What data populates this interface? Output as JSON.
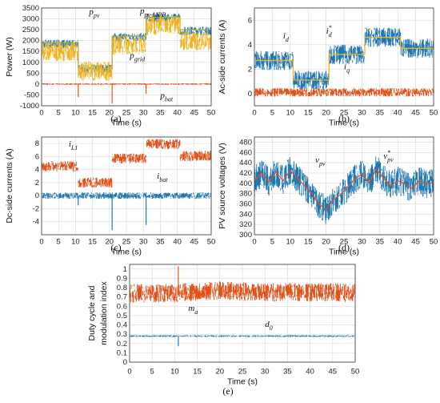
{
  "colors": {
    "blue": "#1f77b4",
    "orange": "#e2531c",
    "yellow": "#f0b323",
    "olive": "#a8a93a"
  },
  "chart_data": [
    {
      "id": "a",
      "type": "line",
      "panel_label": "(a)",
      "xlabel": "Time (s)",
      "ylabel": "Power (W)",
      "xlim": [
        0,
        50
      ],
      "ylim": [
        -1000,
        3500
      ],
      "xticks": [
        0,
        5,
        10,
        15,
        20,
        25,
        30,
        35,
        40,
        45,
        50
      ],
      "yticks": [
        -1000,
        -500,
        0,
        500,
        1000,
        1500,
        2000,
        2500,
        3000,
        3500
      ],
      "grid": true,
      "series": [
        {
          "name": "p_pv",
          "color": "#1f77b4",
          "x": [
            0,
            10.8,
            10.8,
            20.8,
            20.8,
            30.8,
            30.8,
            40.8,
            40.8,
            50
          ],
          "y": [
            1850,
            1850,
            700,
            700,
            2150,
            2150,
            3050,
            3050,
            2450,
            2450
          ],
          "band": 200
        },
        {
          "name": "p_pv-MPP",
          "color": "#a8a93a",
          "x": [
            0,
            10.8,
            10.8,
            20.8,
            20.8,
            30.8,
            30.8,
            40.8,
            40.8,
            50
          ],
          "y": [
            1900,
            1900,
            720,
            720,
            2200,
            2200,
            3080,
            3080,
            2500,
            2500
          ],
          "band": 0
        },
        {
          "name": "p_grid",
          "color": "#f0b323",
          "x": [
            0,
            10.8,
            10.8,
            20.8,
            20.8,
            30.8,
            30.8,
            40.8,
            40.8,
            50
          ],
          "y": [
            1500,
            1500,
            600,
            600,
            1800,
            1800,
            2700,
            2700,
            2000,
            2000
          ],
          "band": 450
        },
        {
          "name": "p_bat",
          "color": "#e2531c",
          "x": [
            0,
            10.8,
            20.8,
            30.8,
            40.8,
            50
          ],
          "y": [
            0,
            0,
            0,
            0,
            0,
            0
          ],
          "band": 40,
          "spikes": [
            {
              "x": 10.8,
              "y": -600
            },
            {
              "x": 20.8,
              "y": -900
            },
            {
              "x": 30.8,
              "y": -450
            }
          ]
        }
      ],
      "annotations": [
        {
          "text": "p",
          "sub": "pv",
          "sx": 14,
          "sy": 3200
        },
        {
          "text": "p",
          "sub": "pv-MPP",
          "sx": 29,
          "sy": 3250
        },
        {
          "text": "p",
          "sub": "grid",
          "sx": 26,
          "sy": 1200
        },
        {
          "text": "p",
          "sub": "bat",
          "sx": 35,
          "sy": -650
        }
      ]
    },
    {
      "id": "b",
      "type": "line",
      "panel_label": "(b)",
      "xlabel": "Time (s)",
      "ylabel": "Ac-side currents (A)",
      "xlim": [
        0,
        50
      ],
      "ylim": [
        -1,
        7
      ],
      "xticks": [
        0,
        5,
        10,
        15,
        20,
        25,
        30,
        35,
        40,
        45,
        50
      ],
      "yticks": [
        0,
        2,
        4,
        6
      ],
      "grid": true,
      "series": [
        {
          "name": "i_d",
          "color": "#1f77b4",
          "x": [
            0,
            10.8,
            10.8,
            20.8,
            20.8,
            30.8,
            30.8,
            40.8,
            40.8,
            50
          ],
          "y": [
            2.7,
            2.7,
            1.1,
            1.1,
            3.2,
            3.2,
            4.6,
            4.6,
            3.7,
            3.7
          ],
          "band": 0.8
        },
        {
          "name": "i_d*",
          "color": "#f0b323",
          "x": [
            0,
            10.8,
            10.8,
            20.8,
            20.8,
            30.8,
            30.8,
            40.8,
            40.8,
            50
          ],
          "y": [
            2.7,
            2.7,
            1.1,
            1.1,
            3.2,
            3.2,
            4.6,
            4.6,
            3.7,
            3.7
          ],
          "band": 0
        },
        {
          "name": "i_q",
          "color": "#e2531c",
          "x": [
            0,
            50
          ],
          "y": [
            0.1,
            0.1
          ],
          "band": 0.35
        }
      ],
      "annotations": [
        {
          "text": "i",
          "sub": "d",
          "sx": 8,
          "sy": 4.5
        },
        {
          "text": "i",
          "sub": "d",
          "sup": "*",
          "sx": 20,
          "sy": 4.9
        },
        {
          "text": "i",
          "sub": "q",
          "sx": 25,
          "sy": 2.0
        }
      ]
    },
    {
      "id": "c",
      "type": "line",
      "panel_label": "(c)",
      "xlabel": "Time (s)",
      "ylabel": "Dc-side currents (A)",
      "xlim": [
        0,
        50
      ],
      "ylim": [
        -6,
        9
      ],
      "xticks": [
        0,
        5,
        10,
        15,
        20,
        25,
        30,
        35,
        40,
        45,
        50
      ],
      "yticks": [
        -4,
        -2,
        0,
        2,
        4,
        6,
        8
      ],
      "grid": true,
      "series": [
        {
          "name": "i_L1",
          "color": "#e2531c",
          "x": [
            0,
            10.8,
            10.8,
            20.8,
            20.8,
            30.8,
            30.8,
            40.8,
            40.8,
            50
          ],
          "y": [
            4.5,
            4.5,
            2.0,
            2.0,
            5.7,
            5.7,
            7.9,
            7.9,
            6.1,
            6.1
          ],
          "band": 0.8
        },
        {
          "name": "i_bat",
          "color": "#1f77b4",
          "x": [
            0,
            50
          ],
          "y": [
            0,
            0
          ],
          "band": 0.5,
          "spikes": [
            {
              "x": 10.8,
              "y": -1.5
            },
            {
              "x": 20.8,
              "y": -5.3
            },
            {
              "x": 30.8,
              "y": -4.5
            }
          ]
        }
      ],
      "annotations": [
        {
          "text": "i",
          "sub": "L1",
          "sx": 8,
          "sy": 7.5
        },
        {
          "text": "i",
          "sub": "bat",
          "sx": 34,
          "sy": 2.6
        }
      ]
    },
    {
      "id": "d",
      "type": "line",
      "panel_label": "(d)",
      "xlabel": "Time (s)",
      "ylabel": "PV source voltages (V)",
      "xlim": [
        0,
        50
      ],
      "ylim": [
        300,
        490
      ],
      "xticks": [
        0,
        5,
        10,
        15,
        20,
        25,
        30,
        35,
        40,
        45,
        50
      ],
      "yticks": [
        300,
        320,
        340,
        360,
        380,
        400,
        420,
        440,
        460,
        480
      ],
      "grid": true,
      "series": [
        {
          "name": "v_pv",
          "color": "#1f77b4",
          "x": [
            0,
            2,
            4,
            6,
            8,
            10,
            12,
            14,
            16,
            18,
            20,
            22,
            24,
            26,
            28,
            30,
            32,
            34,
            36,
            38,
            40,
            42,
            44,
            46,
            48,
            50
          ],
          "y": [
            405,
            420,
            402,
            422,
            405,
            425,
            410,
            395,
            380,
            360,
            348,
            368,
            378,
            392,
            408,
            418,
            400,
            428,
            410,
            395,
            405,
            398,
            390,
            405,
            398,
            402
          ],
          "band": 28
        },
        {
          "name": "v_pv*",
          "color": "#e2531c",
          "x": [
            0,
            2,
            4,
            6,
            8,
            10,
            12,
            14,
            16,
            18,
            20,
            22,
            24,
            26,
            28,
            30,
            32,
            34,
            36,
            38,
            40,
            42,
            44,
            46,
            48,
            50
          ],
          "y": [
            405,
            420,
            402,
            422,
            405,
            425,
            410,
            395,
            380,
            360,
            348,
            368,
            378,
            392,
            408,
            418,
            400,
            428,
            410,
            395,
            405,
            398,
            390,
            405,
            398,
            402
          ],
          "band": 0
        }
      ],
      "annotations": [
        {
          "text": "v",
          "sub": "pv",
          "sx": 17,
          "sy": 440
        },
        {
          "text": "v",
          "sub": "pv",
          "sup": "*",
          "sx": 36,
          "sy": 448
        }
      ]
    },
    {
      "id": "e",
      "type": "line",
      "panel_label": "(e)",
      "xlabel": "Time (s)",
      "ylabel": "Duty cycle and modulation index",
      "xlim": [
        0,
        50
      ],
      "ylim": [
        0,
        1.05
      ],
      "xticks": [
        0,
        5,
        10,
        15,
        20,
        25,
        30,
        35,
        40,
        45,
        50
      ],
      "yticks": [
        0,
        0.1,
        0.2,
        0.3,
        0.4,
        0.5,
        0.6,
        0.7,
        0.8,
        0.9,
        1
      ],
      "grid": true,
      "series": [
        {
          "name": "m_a",
          "color": "#e2531c",
          "x": [
            0,
            5,
            10,
            15,
            20,
            25,
            30,
            35,
            40,
            45,
            50
          ],
          "y": [
            0.74,
            0.74,
            0.74,
            0.76,
            0.77,
            0.76,
            0.75,
            0.75,
            0.75,
            0.75,
            0.74
          ],
          "band": 0.1,
          "spikes": [
            {
              "x": 10.8,
              "y": 1.03
            }
          ]
        },
        {
          "name": "d_0",
          "color": "#1f77b4",
          "x": [
            0,
            50
          ],
          "y": [
            0.28,
            0.28
          ],
          "band": 0.01,
          "spikes": [
            {
              "x": 10.8,
              "y": 0.17
            }
          ]
        }
      ],
      "annotations": [
        {
          "text": "m",
          "sub": "a",
          "sx": 13,
          "sy": 0.55
        },
        {
          "text": "d",
          "sub": "0",
          "sx": 30,
          "sy": 0.38
        }
      ]
    }
  ]
}
